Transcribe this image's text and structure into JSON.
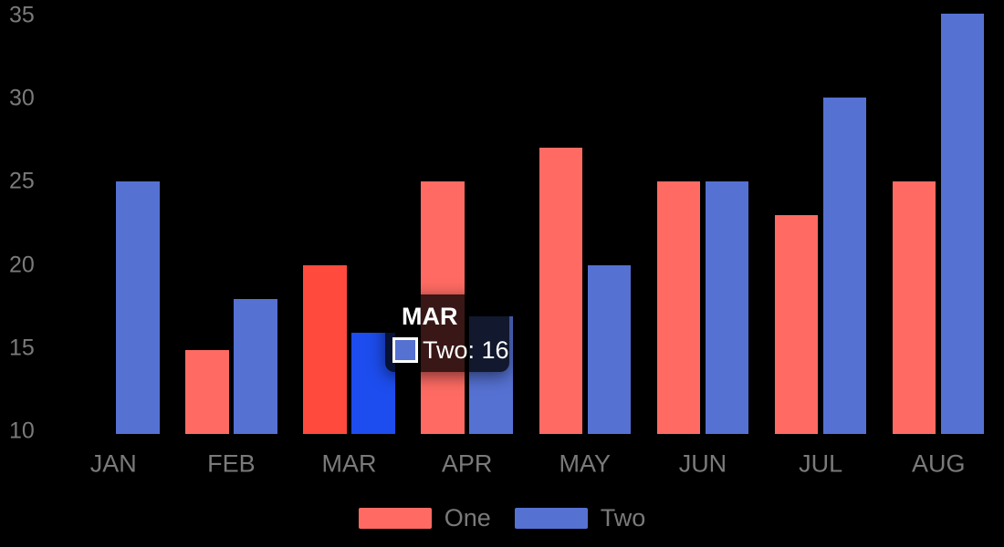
{
  "chart_data": {
    "type": "bar",
    "title": "",
    "xlabel": "",
    "ylabel": "",
    "categories": [
      "JAN",
      "FEB",
      "MAR",
      "APR",
      "MAY",
      "JUN",
      "JUL",
      "AUG"
    ],
    "series": [
      {
        "name": "One",
        "color": "#FF6B63",
        "hover_color": "#FF4A3D",
        "values": [
          null,
          15,
          20,
          25,
          27,
          25,
          23,
          25
        ]
      },
      {
        "name": "Two",
        "color": "#5571D2",
        "hover_color": "#1D4DEE",
        "values": [
          25,
          18,
          16,
          17,
          20,
          25,
          30,
          35
        ]
      }
    ],
    "y_ticks": [
      35,
      30,
      25,
      20,
      15,
      10
    ],
    "ylim": [
      10,
      35
    ],
    "grid": false,
    "legend_position": "bottom",
    "hovered_category": "MAR",
    "hovered_series": "Two",
    "hovered_value": 16
  },
  "tooltip": {
    "title": "MAR",
    "entry_text": "Two: 16",
    "swatch_color": "#5571D2"
  },
  "legend": {
    "items": [
      {
        "label": "One",
        "color": "#FF6B63"
      },
      {
        "label": "Two",
        "color": "#5571D2"
      }
    ]
  },
  "colors": {
    "background": "#000000",
    "axis_text": "#7A7A7A",
    "tooltip_background": "rgba(0,0,0,0.78)",
    "tooltip_text": "#FFFFFF"
  }
}
